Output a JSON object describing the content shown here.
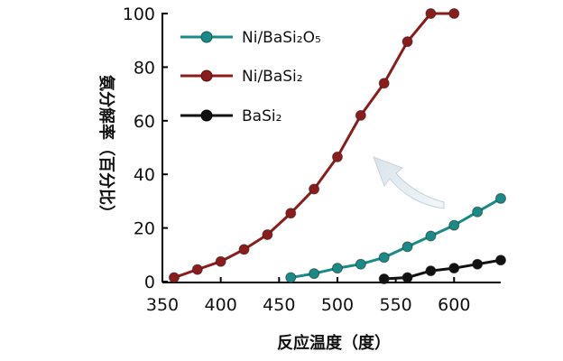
{
  "chart_data": {
    "type": "line",
    "xlabel": "反应温度（度）",
    "ylabel": "氨分解率（百分比）",
    "xlim": [
      350,
      640
    ],
    "ylim": [
      0,
      100
    ],
    "x_ticks": [
      "350",
      "400",
      "450",
      "500",
      "550",
      "600"
    ],
    "y_ticks": [
      "0",
      "20",
      "40",
      "60",
      "80",
      "100"
    ],
    "legend_placement": "top-left",
    "series": [
      {
        "name": "Ni/BaSi₂O₅",
        "color": "#1a8a86",
        "x": [
          460,
          480,
          500,
          520,
          540,
          560,
          580,
          600,
          620,
          640
        ],
        "y": [
          1.5,
          3,
          5,
          6.5,
          9,
          13,
          17,
          21,
          26,
          31
        ]
      },
      {
        "name": "Ni/BaSi₂",
        "color": "#8b1c1c",
        "x": [
          360,
          380,
          400,
          420,
          440,
          460,
          480,
          500,
          520,
          540,
          560,
          580,
          600
        ],
        "y": [
          1.5,
          4.5,
          7.5,
          12,
          17.5,
          25.5,
          34.5,
          46.5,
          62,
          74,
          89.5,
          100,
          100
        ]
      },
      {
        "name": "BaSi₂",
        "color": "#111111",
        "x": [
          540,
          560,
          580,
          600,
          620,
          640
        ],
        "y": [
          1,
          1.5,
          4,
          5,
          6.5,
          8
        ]
      }
    ],
    "annotation": "arrow-up-left"
  }
}
